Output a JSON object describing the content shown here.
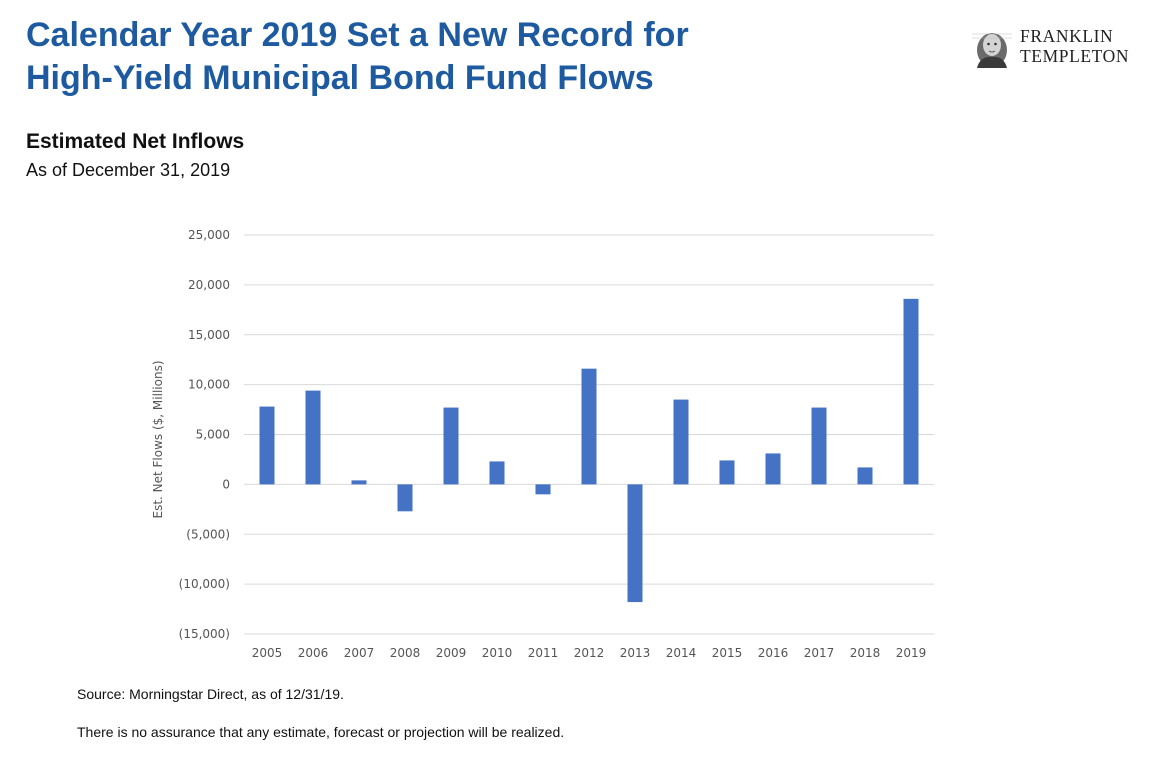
{
  "header": {
    "title_line1": "Calendar Year 2019 Set a New Record for",
    "title_line2": "High-Yield Municipal Bond Fund Flows",
    "brand_line1": "FRANKLIN",
    "brand_line2": "TEMPLETON",
    "brand_icon": "benjamin-franklin-portrait-icon"
  },
  "subtitle": "Estimated Net Inflows",
  "as_of": "As of December 31, 2019",
  "chart_data": {
    "type": "bar",
    "ylabel": "Est. Net Flows ($, Millions)",
    "ylim": [
      -15000,
      25000
    ],
    "yticks": [
      25000,
      20000,
      15000,
      10000,
      5000,
      0,
      -5000,
      -10000,
      -15000
    ],
    "ytick_labels": [
      "25,000",
      "20,000",
      "15,000",
      "10,000",
      "5,000",
      "0",
      "(5,000)",
      "(10,000)",
      "(15,000)"
    ],
    "categories": [
      "2005",
      "2006",
      "2007",
      "2008",
      "2009",
      "2010",
      "2011",
      "2012",
      "2013",
      "2014",
      "2015",
      "2016",
      "2017",
      "2018",
      "2019"
    ],
    "values": [
      7800,
      9400,
      400,
      -2700,
      7700,
      2300,
      -1000,
      11600,
      -11800,
      8500,
      2400,
      3100,
      7700,
      1700,
      18600
    ],
    "grid": true,
    "bar_color": "#4472c4",
    "grid_color": "#d9d9d9"
  },
  "footer": {
    "source": "Source: Morningstar Direct, as of 12/31/19.",
    "disclaimer": "There is no assurance that any estimate, forecast or projection will be realized."
  }
}
